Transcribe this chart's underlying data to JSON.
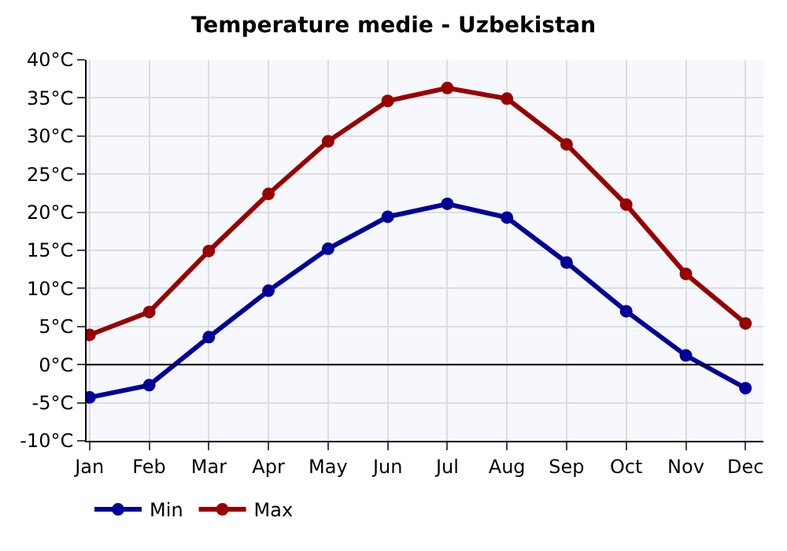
{
  "chart_data": {
    "type": "line",
    "title": "Temperature medie - Uzbekistan",
    "categories": [
      "Jan",
      "Feb",
      "Mar",
      "Apr",
      "May",
      "Jun",
      "Jul",
      "Aug",
      "Sep",
      "Oct",
      "Nov",
      "Dec"
    ],
    "series": [
      {
        "name": "Min",
        "color": "#000099",
        "values": [
          -4.3,
          -2.7,
          3.6,
          9.7,
          15.2,
          19.4,
          21.1,
          19.3,
          13.4,
          7.0,
          1.2,
          -3.1
        ]
      },
      {
        "name": "Max",
        "color": "#990000",
        "values": [
          3.9,
          6.9,
          14.9,
          22.4,
          29.3,
          34.6,
          36.3,
          34.9,
          28.9,
          21.0,
          11.9,
          5.4
        ]
      }
    ],
    "ylim": [
      -10,
      40
    ],
    "yticks": [
      {
        "value": -10,
        "label": "-10°C"
      },
      {
        "value": -5,
        "label": "-5°C"
      },
      {
        "value": 0,
        "label": "0°C"
      },
      {
        "value": 5,
        "label": "5°C"
      },
      {
        "value": 10,
        "label": "10°C"
      },
      {
        "value": 15,
        "label": "15°C"
      },
      {
        "value": 20,
        "label": "20°C"
      },
      {
        "value": 25,
        "label": "25°C"
      },
      {
        "value": 30,
        "label": "30°C"
      },
      {
        "value": 35,
        "label": "35°C"
      },
      {
        "value": 40,
        "label": "40°C"
      }
    ],
    "ref_lines": [
      {
        "axis": "y",
        "value": 0,
        "color": "#000000"
      }
    ],
    "grid": true,
    "legend": "bottom left",
    "marker": "circle",
    "line_style": "solid"
  }
}
